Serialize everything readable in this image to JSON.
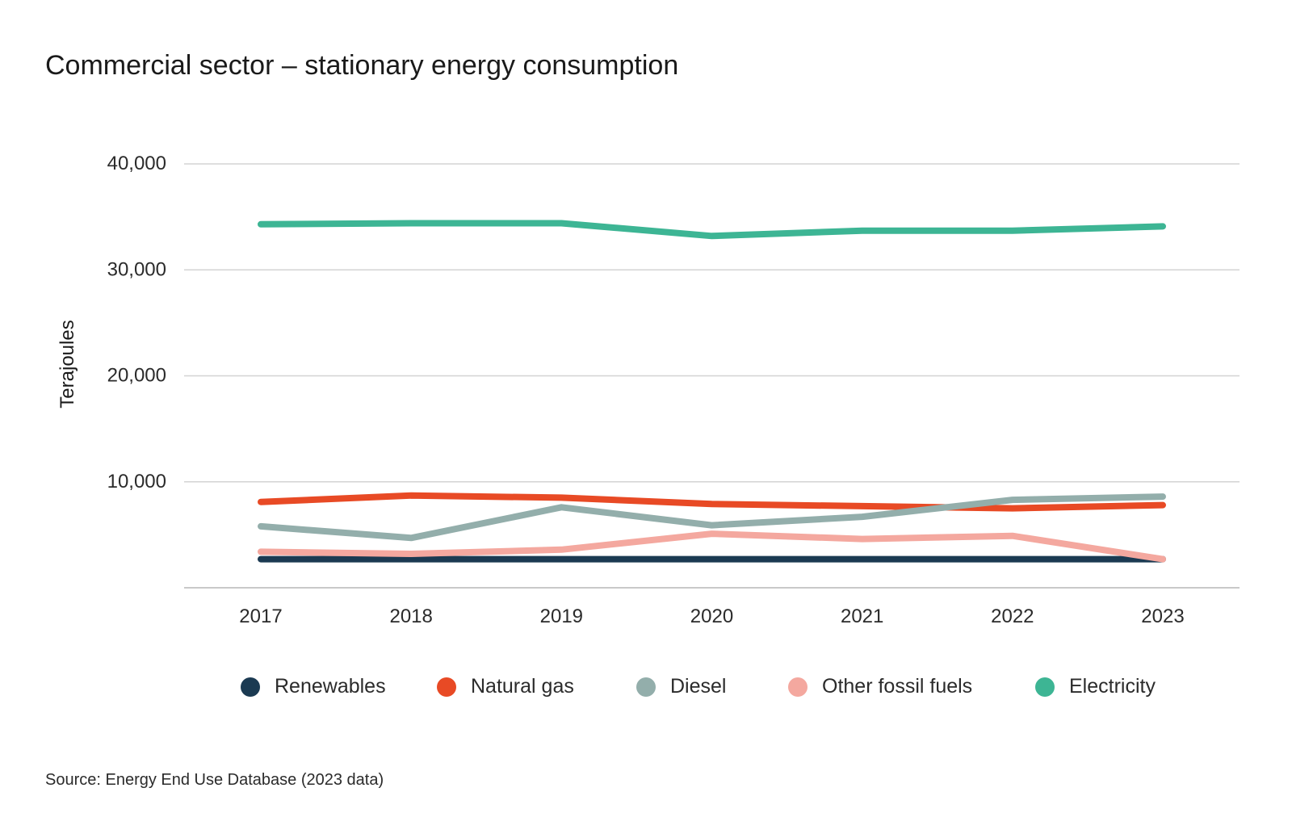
{
  "chart_data": {
    "type": "line",
    "title": "Commercial sector – stationary energy consumption",
    "xlabel": "",
    "ylabel": "Terajoules",
    "ylim": [
      0,
      40000
    ],
    "yticks": [
      10000,
      20000,
      30000,
      40000
    ],
    "ytick_labels": [
      "10,000",
      "20,000",
      "30,000",
      "40,000"
    ],
    "categories": [
      "2017",
      "2018",
      "2019",
      "2020",
      "2021",
      "2022",
      "2023"
    ],
    "grid": "horizontal",
    "legend_position": "bottom",
    "series": [
      {
        "name": "Renewables",
        "color": "#1b3a52",
        "values": [
          2700,
          2700,
          2700,
          2700,
          2700,
          2700,
          2700
        ]
      },
      {
        "name": "Natural gas",
        "color": "#e84a25",
        "values": [
          8100,
          8700,
          8500,
          7900,
          7700,
          7500,
          7800
        ]
      },
      {
        "name": "Diesel",
        "color": "#93aeab",
        "values": [
          5800,
          4700,
          7600,
          5900,
          6700,
          8300,
          8600
        ]
      },
      {
        "name": "Other fossil fuels",
        "color": "#f4a89f",
        "values": [
          3400,
          3200,
          3600,
          5100,
          4600,
          4900,
          2700
        ]
      },
      {
        "name": "Electricity",
        "color": "#3db594",
        "values": [
          34300,
          34400,
          34400,
          33200,
          33700,
          33700,
          34100
        ]
      }
    ]
  },
  "source": "Source: Energy End Use Database (2023 data)"
}
